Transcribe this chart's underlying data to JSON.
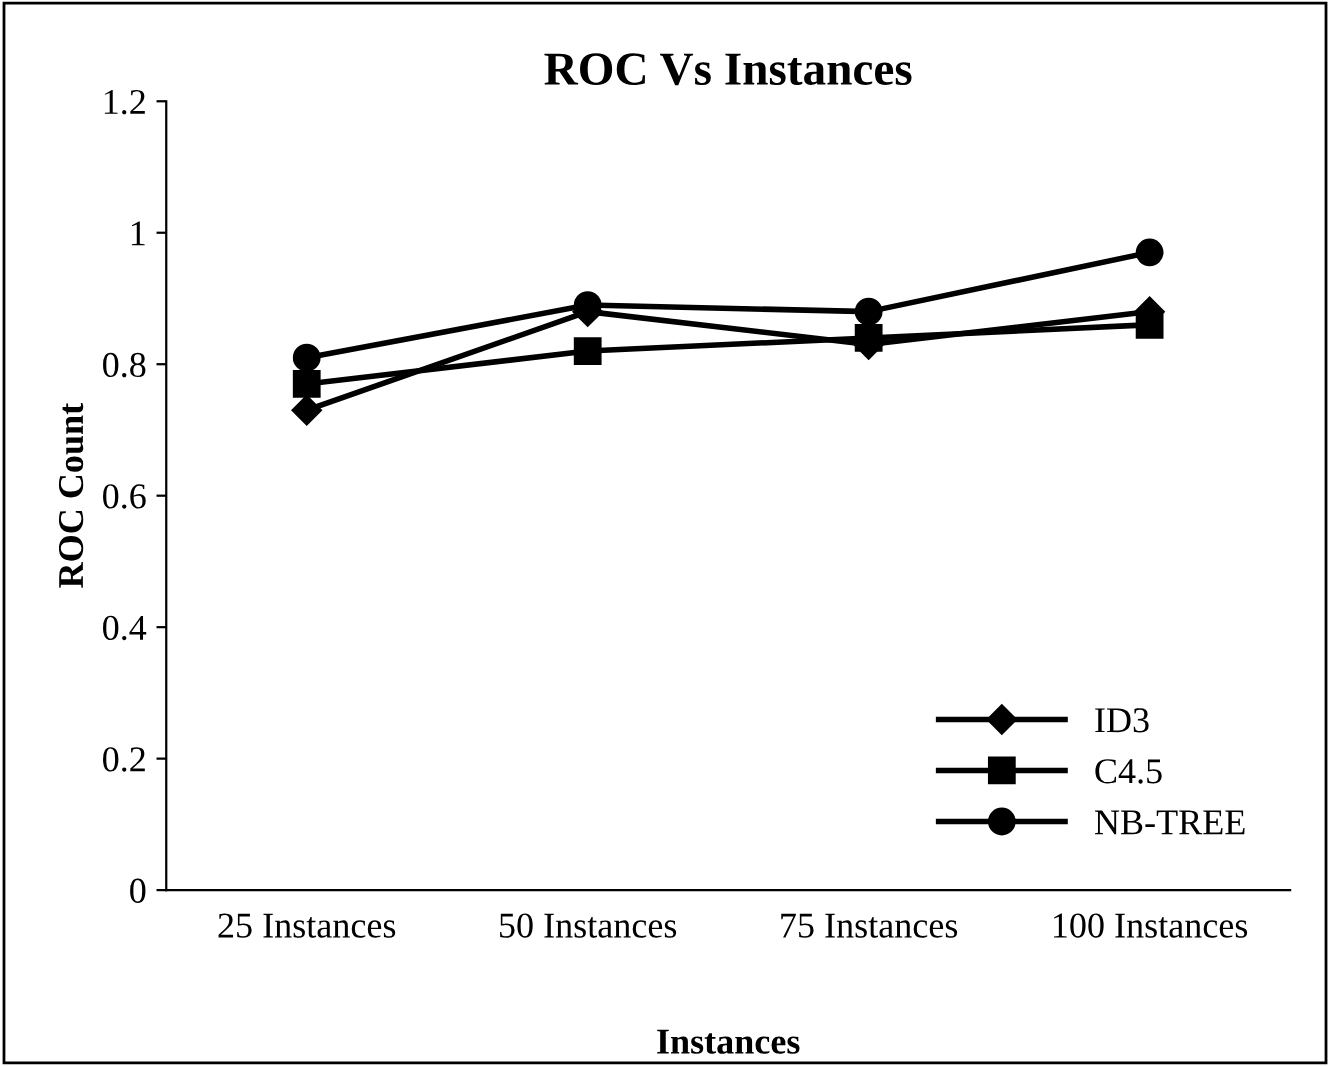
{
  "chart_data": {
    "type": "line",
    "title": "ROC Vs Instances",
    "xlabel": "Instances",
    "ylabel": "ROC Count",
    "categories": [
      "25 Instances",
      "50 Instances",
      "75 Instances",
      "100 Instances"
    ],
    "series": [
      {
        "name": "ID3",
        "color": "#000000",
        "marker": "diamond",
        "values": [
          0.73,
          0.88,
          0.83,
          0.88
        ]
      },
      {
        "name": "C4.5",
        "color": "#000000",
        "marker": "square",
        "values": [
          0.77,
          0.82,
          0.84,
          0.86
        ]
      },
      {
        "name": "NB-TREE",
        "color": "#000000",
        "marker": "circle",
        "values": [
          0.81,
          0.89,
          0.88,
          0.97
        ]
      }
    ],
    "ylim": [
      0,
      1.2
    ],
    "yticks": [
      0,
      0.2,
      0.4,
      0.6,
      0.8,
      1,
      1.2
    ],
    "grid": false,
    "legend": "bottom right",
    "line_style": "solid"
  }
}
